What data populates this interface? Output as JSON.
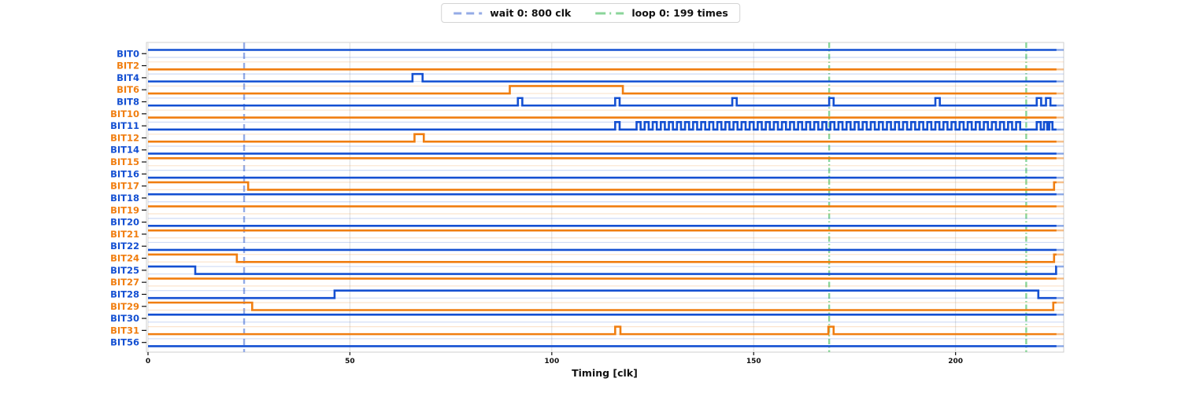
{
  "chart_data": {
    "type": "timing-waveform",
    "title": "",
    "xlabel": "Timing [clk]",
    "xticks": [
      0,
      50,
      100,
      150,
      200
    ],
    "xlim": [
      0,
      226.8
    ],
    "solid_end": 225,
    "grid": "vertical-only",
    "legend_position": "top-center",
    "colors": {
      "blue": "#1450d2",
      "orange": "#f07e10",
      "wait_marker": "#94abe6",
      "loop_marker": "#8ad59a",
      "grid": "#dcdcdc",
      "spine": "#cfcfcf",
      "tick_text": "#111111"
    },
    "legend": [
      {
        "label": "wait 0: 800 clk",
        "style": "dashed",
        "color": "#94abe6"
      },
      {
        "label": "loop 0: 199 times",
        "style": "dashdot",
        "color": "#8ad59a"
      }
    ],
    "markers": [
      {
        "kind": "wait",
        "t": 23.8,
        "style": "dashed",
        "color": "#94abe6"
      },
      {
        "kind": "loop",
        "t": 168.7,
        "style": "dashdot",
        "color": "#8ad59a"
      },
      {
        "kind": "loop",
        "t": 217.5,
        "style": "dashdot",
        "color": "#8ad59a"
      }
    ],
    "signals": [
      {
        "name": "BIT0",
        "color": "blue",
        "steps": [
          [
            0,
            1
          ]
        ]
      },
      {
        "name": "BIT2",
        "color": "orange",
        "steps": [
          [
            0,
            0
          ]
        ]
      },
      {
        "name": "BIT4",
        "color": "blue",
        "steps": [
          [
            0,
            0
          ],
          [
            65.5,
            1
          ],
          [
            68,
            0
          ]
        ]
      },
      {
        "name": "BIT6",
        "color": "orange",
        "steps": [
          [
            0,
            0
          ],
          [
            89.6,
            1
          ],
          [
            117.6,
            0
          ]
        ]
      },
      {
        "name": "BIT8",
        "color": "blue",
        "steps": [
          [
            0,
            0
          ],
          [
            91.6,
            1
          ],
          [
            92.7,
            0
          ],
          [
            115.7,
            1
          ],
          [
            116.8,
            0
          ],
          [
            144.7,
            1
          ],
          [
            145.8,
            0
          ],
          [
            168.7,
            1
          ],
          [
            169.8,
            0
          ],
          [
            195,
            1
          ],
          [
            196.1,
            0
          ],
          [
            220.1,
            1
          ],
          [
            221.2,
            0
          ],
          [
            222.4,
            1
          ],
          [
            223.5,
            0
          ]
        ]
      },
      {
        "name": "BIT10",
        "color": "orange",
        "steps": [
          [
            0,
            0
          ]
        ]
      },
      {
        "name": "BIT11",
        "color": "blue",
        "steps": [
          [
            0,
            0
          ],
          [
            115.7,
            1
          ],
          [
            116.8,
            0
          ],
          [
            220.1,
            1
          ],
          [
            221.1,
            0
          ],
          [
            221.9,
            1
          ],
          [
            222.7,
            0
          ],
          [
            223.2,
            1
          ],
          [
            224,
            0
          ]
        ],
        "clock": {
          "start": 121,
          "end": 217,
          "period": 2
        }
      },
      {
        "name": "BIT12",
        "color": "orange",
        "steps": [
          [
            0,
            0
          ],
          [
            66,
            1
          ],
          [
            68.3,
            0
          ]
        ]
      },
      {
        "name": "BIT14",
        "color": "blue",
        "steps": [
          [
            0,
            0
          ]
        ]
      },
      {
        "name": "BIT15",
        "color": "orange",
        "steps": [
          [
            0,
            1
          ]
        ]
      },
      {
        "name": "BIT16",
        "color": "blue",
        "steps": [
          [
            0,
            0
          ]
        ]
      },
      {
        "name": "BIT17",
        "color": "orange",
        "steps": [
          [
            0,
            1
          ],
          [
            24.8,
            0
          ],
          [
            224.4,
            1
          ]
        ]
      },
      {
        "name": "BIT18",
        "color": "blue",
        "steps": [
          [
            0,
            1
          ]
        ]
      },
      {
        "name": "BIT19",
        "color": "orange",
        "steps": [
          [
            0,
            1
          ]
        ]
      },
      {
        "name": "BIT20",
        "color": "blue",
        "steps": [
          [
            0,
            0
          ]
        ]
      },
      {
        "name": "BIT21",
        "color": "orange",
        "steps": [
          [
            0,
            1
          ]
        ]
      },
      {
        "name": "BIT22",
        "color": "blue",
        "steps": [
          [
            0,
            0
          ]
        ]
      },
      {
        "name": "BIT24",
        "color": "orange",
        "steps": [
          [
            0,
            1
          ],
          [
            22,
            0
          ],
          [
            224.4,
            1
          ]
        ]
      },
      {
        "name": "BIT25",
        "color": "blue",
        "steps": [
          [
            0,
            1
          ],
          [
            11.7,
            0
          ],
          [
            224.9,
            1
          ]
        ]
      },
      {
        "name": "BIT27",
        "color": "orange",
        "steps": [
          [
            0,
            1
          ]
        ]
      },
      {
        "name": "BIT28",
        "color": "blue",
        "steps": [
          [
            0,
            0
          ],
          [
            46.2,
            1
          ],
          [
            220.5,
            0
          ]
        ]
      },
      {
        "name": "BIT29",
        "color": "orange",
        "steps": [
          [
            0,
            1
          ],
          [
            25.8,
            0
          ],
          [
            224.2,
            1
          ]
        ]
      },
      {
        "name": "BIT30",
        "color": "blue",
        "steps": [
          [
            0,
            1
          ]
        ]
      },
      {
        "name": "BIT31",
        "color": "orange",
        "steps": [
          [
            0,
            0
          ],
          [
            115.7,
            1
          ],
          [
            117,
            0
          ],
          [
            168.5,
            1
          ],
          [
            169.8,
            0
          ]
        ]
      },
      {
        "name": "BIT56",
        "color": "blue",
        "steps": [
          [
            0,
            0
          ]
        ]
      }
    ]
  }
}
